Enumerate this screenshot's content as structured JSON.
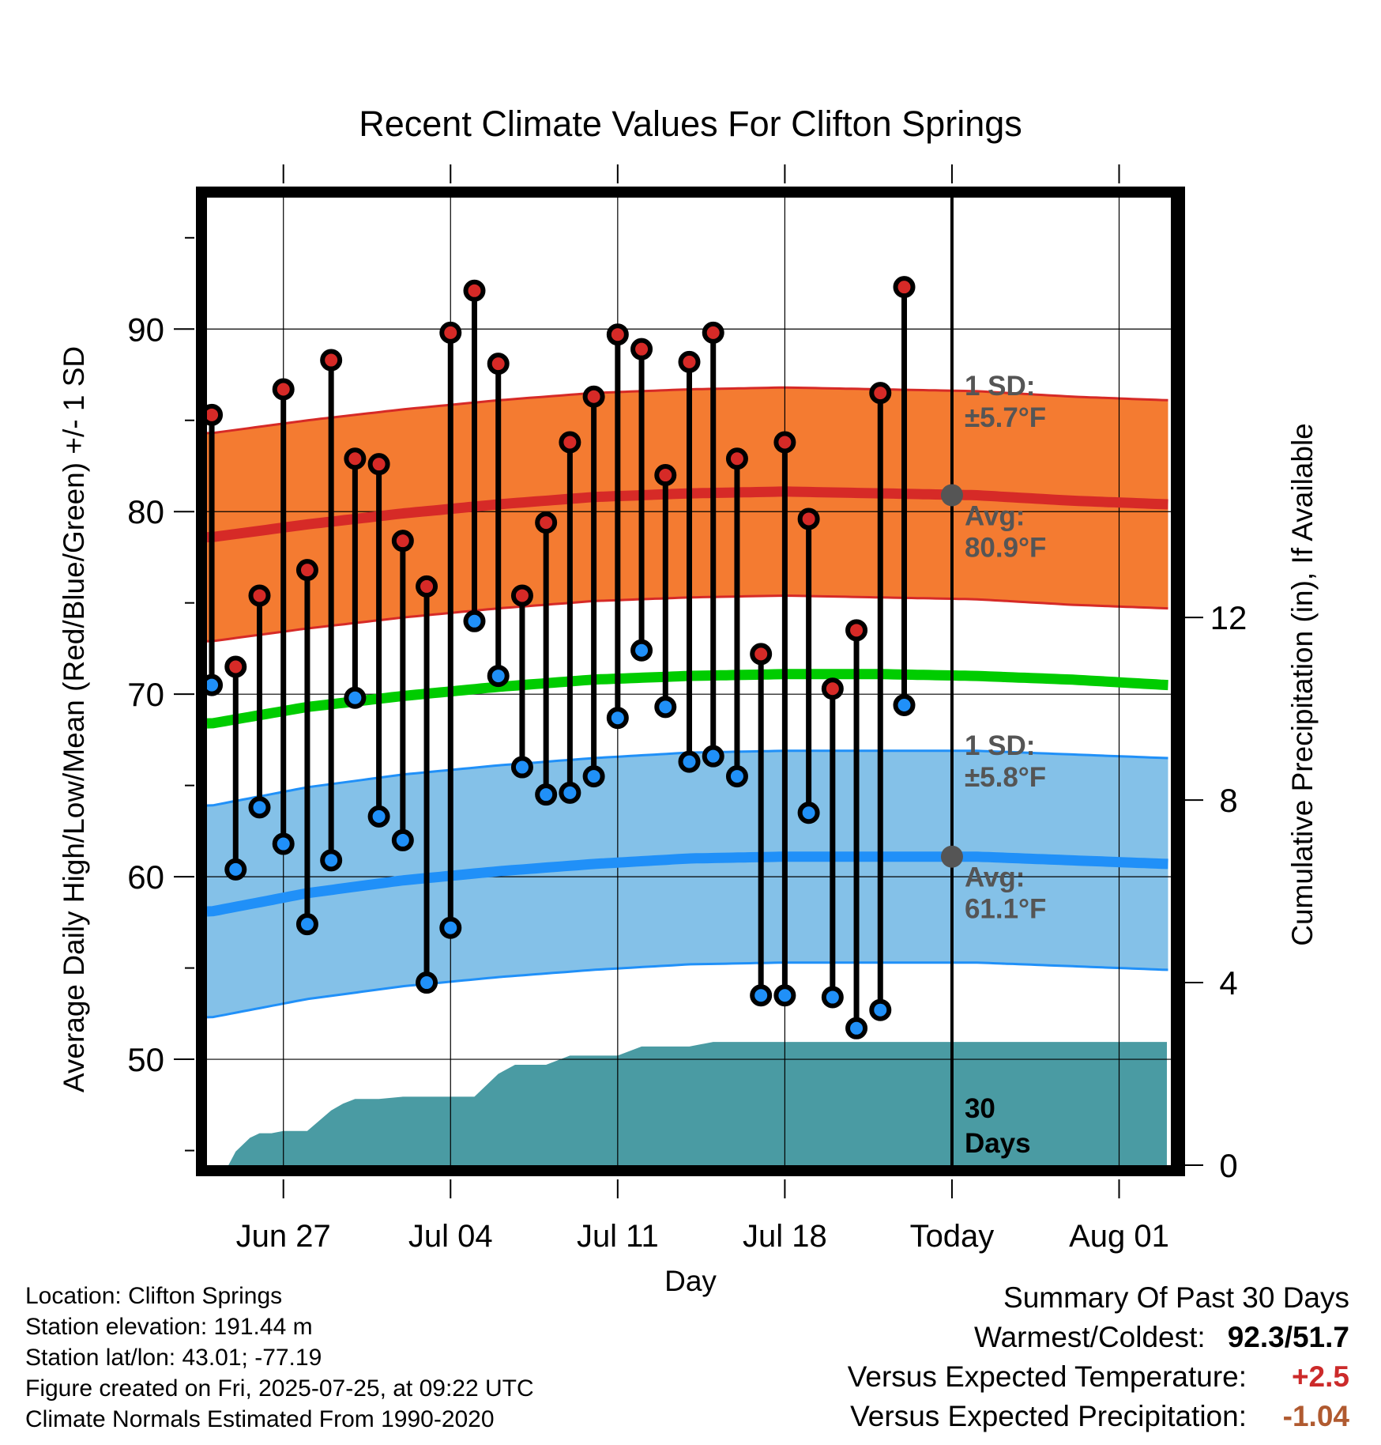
{
  "chart_data": {
    "type": "line",
    "title": "Recent Climate Values For Clifton Springs",
    "xlabel": "Day",
    "ylabel_left": "Average Daily High/Low/Mean (Red/Blue/Green) +/- 1 SD",
    "ylabel_right": "Cumulative Precipitation (in), If Available",
    "x_ticks": [
      {
        "day": 4,
        "label": "Jun 27"
      },
      {
        "day": 11,
        "label": "Jul 04"
      },
      {
        "day": 18,
        "label": "Jul 11"
      },
      {
        "day": 25,
        "label": "Jul 18"
      },
      {
        "day": 32,
        "label": "Today"
      },
      {
        "day": 39,
        "label": "Aug 01"
      }
    ],
    "xlim": [
      0.8,
      41.2
    ],
    "ylim": [
      44.2,
      97.2
    ],
    "y_ticks": [
      50,
      60,
      70,
      80,
      90
    ],
    "y2lim": [
      0,
      21.2
    ],
    "y2_ticks": [
      0,
      4,
      8,
      12
    ],
    "grid": true,
    "today_day": 32,
    "colors": {
      "high": "#d62a27",
      "high_band": "#f47b31",
      "low": "#2090f8",
      "low_band": "#84c1e8",
      "mean": "#00cc00",
      "precip": "#4a9ba3",
      "avg_marker": "#555555",
      "annotation": "#555555",
      "positive": "#cc2a2a",
      "negative": "#b05a30"
    },
    "normals": {
      "days": [
        1,
        5,
        9,
        13,
        17,
        21,
        25,
        29,
        33,
        37,
        41
      ],
      "high_mean": [
        78.6,
        79.3,
        79.9,
        80.4,
        80.8,
        81.0,
        81.1,
        81.0,
        80.9,
        80.6,
        80.4
      ],
      "high_sd": 5.7,
      "low_mean": [
        58.1,
        59.1,
        59.8,
        60.3,
        60.7,
        61.0,
        61.1,
        61.1,
        61.1,
        60.9,
        60.7
      ],
      "low_sd": 5.8,
      "mean_mean": [
        68.4,
        69.3,
        69.9,
        70.4,
        70.8,
        71.0,
        71.1,
        71.1,
        71.0,
        70.8,
        70.5
      ]
    },
    "observations": {
      "days": [
        1,
        2,
        3,
        4,
        5,
        6,
        7,
        8,
        9,
        10,
        11,
        12,
        13,
        14,
        15,
        16,
        17,
        18,
        19,
        20,
        21,
        22,
        23,
        24,
        25,
        26,
        27,
        28,
        29,
        30
      ],
      "high": [
        85.3,
        71.5,
        75.4,
        86.7,
        76.8,
        88.3,
        82.9,
        82.6,
        78.4,
        75.9,
        89.8,
        92.1,
        88.1,
        75.4,
        79.4,
        83.8,
        86.3,
        89.7,
        88.9,
        82.0,
        88.2,
        89.8,
        82.9,
        72.2,
        83.8,
        79.6,
        70.3,
        73.5,
        86.5,
        92.3
      ],
      "low": [
        70.5,
        60.4,
        63.8,
        61.8,
        57.4,
        60.9,
        69.8,
        63.3,
        62.0,
        54.2,
        57.2,
        74.0,
        71.0,
        66.0,
        64.5,
        64.6,
        65.5,
        68.7,
        72.4,
        69.3,
        66.3,
        66.6,
        65.5,
        53.5,
        53.5,
        63.5,
        53.4,
        51.7,
        52.7,
        69.4
      ]
    },
    "precip": {
      "days": [
        1,
        1.7,
        2,
        2.6,
        3,
        3.5,
        4,
        4.5,
        5,
        6,
        6.5,
        7,
        8,
        9,
        10,
        11,
        12,
        13,
        13.7,
        14,
        15,
        16,
        17,
        18,
        19,
        20,
        21,
        22,
        23,
        24,
        25,
        26,
        27,
        28,
        29,
        30,
        31,
        32,
        33,
        41
      ],
      "values": [
        0,
        0,
        0.3,
        0.6,
        0.7,
        0.7,
        0.75,
        0.75,
        0.75,
        1.2,
        1.35,
        1.45,
        1.45,
        1.5,
        1.5,
        1.5,
        1.5,
        2.0,
        2.2,
        2.2,
        2.2,
        2.4,
        2.4,
        2.4,
        2.6,
        2.6,
        2.6,
        2.7,
        2.7,
        2.7,
        2.7,
        2.7,
        2.7,
        2.7,
        2.7,
        2.7,
        2.7,
        2.7,
        2.7,
        2.7
      ]
    },
    "annotations": {
      "high_sd_line1": "1 SD:",
      "high_sd_line2": "±5.7°F",
      "high_avg_line1": "Avg:",
      "high_avg_line2": "80.9°F",
      "high_avg_value": 80.9,
      "low_sd_line1": "1 SD:",
      "low_sd_line2": "±5.8°F",
      "low_avg_line1": "Avg:",
      "low_avg_line2": "61.1°F",
      "low_avg_value": 61.1,
      "days_line1": "30",
      "days_line2": "Days"
    }
  },
  "info": {
    "location": "Location: Clifton Springs",
    "elevation": "Station elevation: 191.44 m",
    "latlon": "Station lat/lon: 43.01; -77.19",
    "created": "Figure created on Fri, 2025-07-25, at 09:22 UTC",
    "normals": "Climate Normals Estimated From 1990-2020"
  },
  "summary": {
    "title": "Summary Of Past 30 Days",
    "warmest_coldest_label": "Warmest/Coldest:",
    "warmest": "92.3",
    "coldest": "51.7",
    "temp_label": "Versus Expected Temperature:",
    "temp_value": "+2.5",
    "precip_label": "Versus Expected Precipitation:",
    "precip_value": "-1.04"
  }
}
